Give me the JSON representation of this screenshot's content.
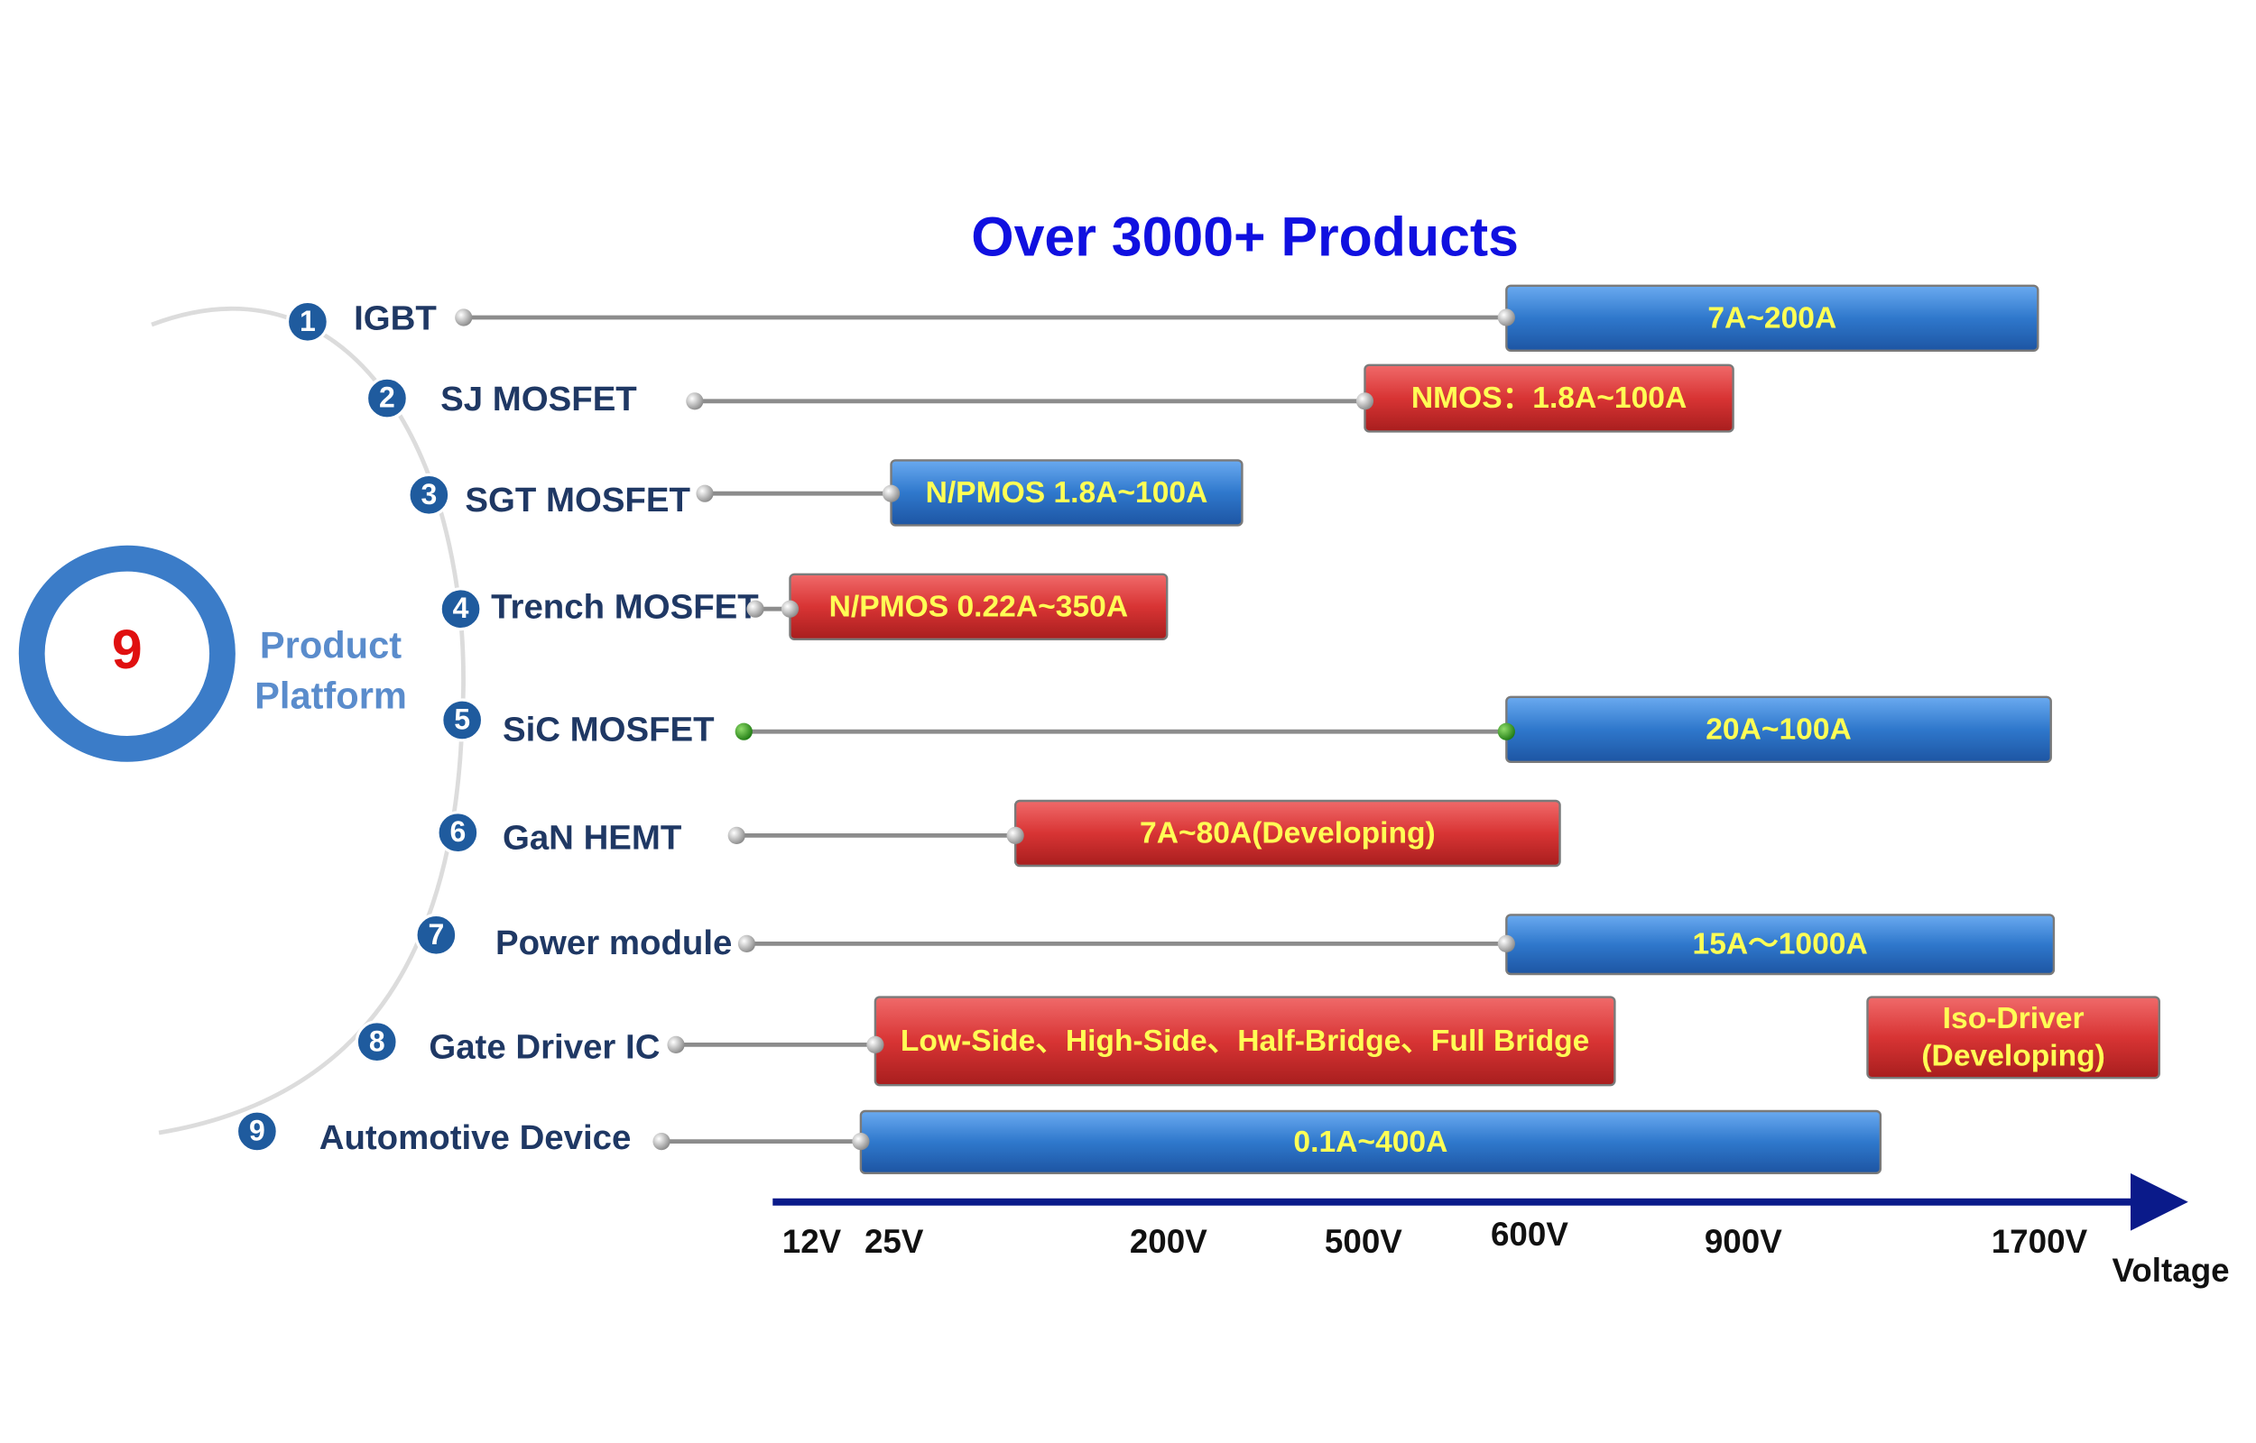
{
  "title": "Over 3000+ Products",
  "hub": {
    "count": "9",
    "label": [
      "Product",
      "Platform"
    ]
  },
  "items": [
    {
      "number": "1",
      "name": "IGBT",
      "bars": [
        {
          "text": [
            "7A~200A"
          ]
        }
      ]
    },
    {
      "number": "2",
      "name": "SJ MOSFET",
      "bars": [
        {
          "text": [
            "NMOS：1.8A~100A"
          ]
        }
      ]
    },
    {
      "number": "3",
      "name": "SGT MOSFET",
      "bars": [
        {
          "text": [
            "N/PMOS 1.8A~100A"
          ]
        }
      ]
    },
    {
      "number": "4",
      "name": "Trench MOSFET",
      "bars": [
        {
          "text": [
            "N/PMOS 0.22A~350A"
          ]
        }
      ]
    },
    {
      "number": "5",
      "name": "SiC MOSFET",
      "bars": [
        {
          "text": [
            "20A~100A"
          ]
        }
      ]
    },
    {
      "number": "6",
      "name": "GaN HEMT",
      "bars": [
        {
          "text": [
            "7A~80A(Developing)"
          ]
        }
      ]
    },
    {
      "number": "7",
      "name": "Power module",
      "bars": [
        {
          "text": [
            "15A～1000A"
          ]
        }
      ]
    },
    {
      "number": "8",
      "name": "Gate Driver IC",
      "bars": [
        {
          "text": [
            "Low-Side、High-Side、Half-Bridge、Full Bridge"
          ]
        },
        {
          "text": [
            "Iso-Driver",
            "(Developing)"
          ]
        }
      ]
    },
    {
      "number": "9",
      "name": "Automotive Device",
      "bars": [
        {
          "text": [
            "0.1A~400A"
          ]
        }
      ]
    }
  ],
  "axis": {
    "ticks": [
      "12V",
      "25V",
      "200V",
      "500V",
      "600V",
      "900V",
      "1700V"
    ],
    "label": "Voltage"
  }
}
